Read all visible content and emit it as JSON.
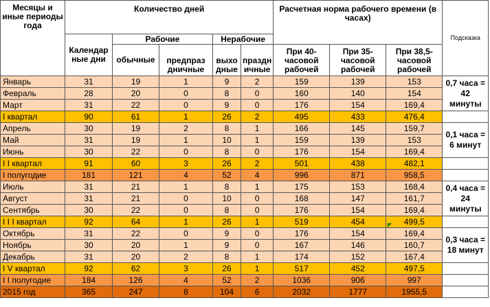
{
  "headers": {
    "months": "Месяцы и иные периоды года",
    "days_count": "Количество дней",
    "norm": "Расчетная норма рабочего времени (в часах)",
    "hint": "Подсказка",
    "calendar": "Календар ные дни",
    "working": "Рабочие",
    "nonworking": "Нерабочие",
    "ordinary": "обычные",
    "preholiday": "предпраз дничные",
    "weekend": "выхо дные",
    "holiday": "праздн ичные",
    "h40": "При 40-часовой рабочей",
    "h35": "При 35-часовой рабочей",
    "h385": "При 38,5-часовой рабочей"
  },
  "rows": [
    {
      "name": "Январь",
      "cal": "31",
      "ord": "19",
      "pre": "1",
      "wkd": "9",
      "hol": "2",
      "h40": "159",
      "h35": "139",
      "h385": "153"
    },
    {
      "name": "Февраль",
      "cal": "28",
      "ord": "20",
      "pre": "0",
      "wkd": "8",
      "hol": "0",
      "h40": "160",
      "h35": "140",
      "h385": "154"
    },
    {
      "name": "Март",
      "cal": "31",
      "ord": "22",
      "pre": "0",
      "wkd": "9",
      "hol": "0",
      "h40": "176",
      "h35": "154",
      "h385": "169,4"
    },
    {
      "name": "I квартал",
      "cal": "90",
      "ord": "61",
      "pre": "1",
      "wkd": "26",
      "hol": "2",
      "h40": "495",
      "h35": "433",
      "h385": "476,4"
    },
    {
      "name": "Апрель",
      "cal": "30",
      "ord": "19",
      "pre": "2",
      "wkd": "8",
      "hol": "1",
      "h40": "166",
      "h35": "145",
      "h385": "159,7"
    },
    {
      "name": "Май",
      "cal": "31",
      "ord": "19",
      "pre": "1",
      "wkd": "10",
      "hol": "1",
      "h40": "159",
      "h35": "139",
      "h385": "153"
    },
    {
      "name": "Июнь",
      "cal": "30",
      "ord": "22",
      "pre": "0",
      "wkd": "8",
      "hol": "0",
      "h40": "176",
      "h35": "154",
      "h385": "169,4"
    },
    {
      "name": "I I квартал",
      "cal": "91",
      "ord": "60",
      "pre": "3",
      "wkd": "26",
      "hol": "2",
      "h40": "501",
      "h35": "438",
      "h385": "482,1"
    },
    {
      "name": "I полугодие",
      "cal": "181",
      "ord": "121",
      "pre": "4",
      "wkd": "52",
      "hol": "4",
      "h40": "996",
      "h35": "871",
      "h385": "958,5"
    },
    {
      "name": "Июль",
      "cal": "31",
      "ord": "21",
      "pre": "1",
      "wkd": "8",
      "hol": "1",
      "h40": "175",
      "h35": "153",
      "h385": "168,4"
    },
    {
      "name": "Август",
      "cal": "31",
      "ord": "21",
      "pre": "0",
      "wkd": "10",
      "hol": "0",
      "h40": "168",
      "h35": "147",
      "h385": "161,7"
    },
    {
      "name": "Сентябрь",
      "cal": "30",
      "ord": "22",
      "pre": "0",
      "wkd": "8",
      "hol": "0",
      "h40": "176",
      "h35": "154",
      "h385": "169,4"
    },
    {
      "name": "I I I квартал",
      "cal": "92",
      "ord": "64",
      "pre": "1",
      "wkd": "26",
      "hol": "1",
      "h40": "519",
      "h35": "454",
      "h385": "499,5"
    },
    {
      "name": "Октябрь",
      "cal": "31",
      "ord": "22",
      "pre": "0",
      "wkd": "9",
      "hol": "0",
      "h40": "176",
      "h35": "154",
      "h385": "169,4"
    },
    {
      "name": "Ноябрь",
      "cal": "30",
      "ord": "20",
      "pre": "1",
      "wkd": "9",
      "hol": "0",
      "h40": "167",
      "h35": "146",
      "h385": "160,7"
    },
    {
      "name": "Декабрь",
      "cal": "31",
      "ord": "20",
      "pre": "2",
      "wkd": "8",
      "hol": "1",
      "h40": "174",
      "h35": "152",
      "h385": "167,4"
    },
    {
      "name": "I V квартал",
      "cal": "92",
      "ord": "62",
      "pre": "3",
      "wkd": "26",
      "hol": "1",
      "h40": "517",
      "h35": "452",
      "h385": "497,5"
    },
    {
      "name": "I I полугодие",
      "cal": "184",
      "ord": "126",
      "pre": "4",
      "wkd": "52",
      "hol": "2",
      "h40": "1036",
      "h35": "906",
      "h385": "997"
    },
    {
      "name": "2015 год",
      "cal": "365",
      "ord": "247",
      "pre": "8",
      "wkd": "104",
      "hol": "6",
      "h40": "2032",
      "h35": "1777",
      "h385": "1955,5"
    }
  ],
  "hints": [
    "0,7 часа = 42 минуты",
    "0,1 часа = 6 минут",
    "0,4 часа = 24 минуты",
    "0,3 часа = 18 минут"
  ],
  "colors": {
    "month_row": "#fcd5b4",
    "quarter_row": "#ffc000",
    "half_year_row": "#f79646",
    "year_row": "#e26b0a"
  }
}
